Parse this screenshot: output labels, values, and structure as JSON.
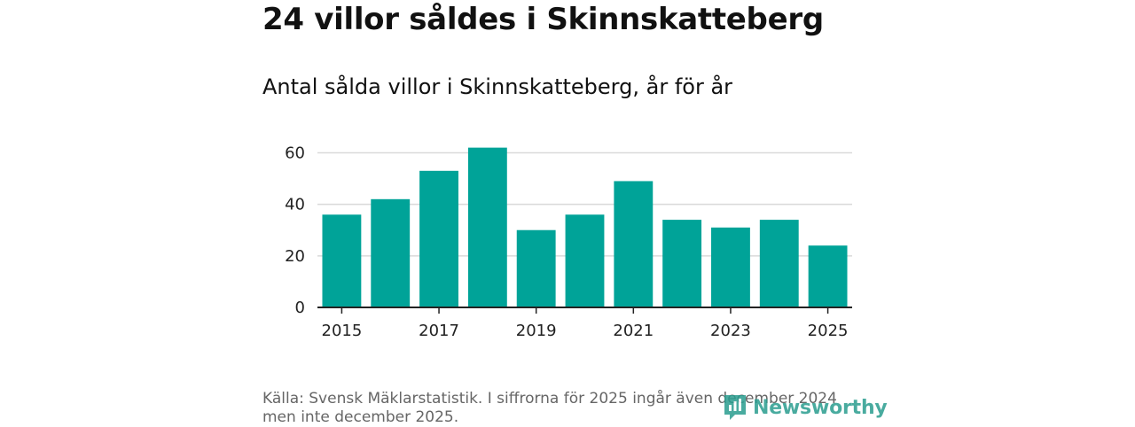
{
  "title": "24 villor såldes i Skinnskatteberg",
  "subtitle": "Antal sålda villor i Skinnskatteberg, år för år",
  "source": "Källa: Svensk Mäklarstatistik. I siffrorna för 2025 ingår även december 2024 men inte december 2025.",
  "logo": {
    "text": "Newsworthy",
    "icon": "newsworthy-logo-icon",
    "color": "#2a9d8f"
  },
  "colors": {
    "bar": "#00a398",
    "grid": "#d9d9d9",
    "axis": "#222222"
  },
  "chart_data": {
    "type": "bar",
    "title": "Antal sålda villor i Skinnskatteberg, år för år",
    "xlabel": "",
    "ylabel": "",
    "categories": [
      "2015",
      "2016",
      "2017",
      "2018",
      "2019",
      "2020",
      "2021",
      "2022",
      "2023",
      "2024",
      "2025"
    ],
    "values": [
      36,
      42,
      53,
      62,
      30,
      36,
      49,
      34,
      31,
      34,
      24
    ],
    "x_tick_labels": [
      "2015",
      "2017",
      "2019",
      "2021",
      "2023",
      "2025"
    ],
    "y_ticks": [
      0,
      20,
      40,
      60
    ],
    "ylim": [
      0,
      66
    ],
    "grid": true,
    "legend": "none"
  }
}
